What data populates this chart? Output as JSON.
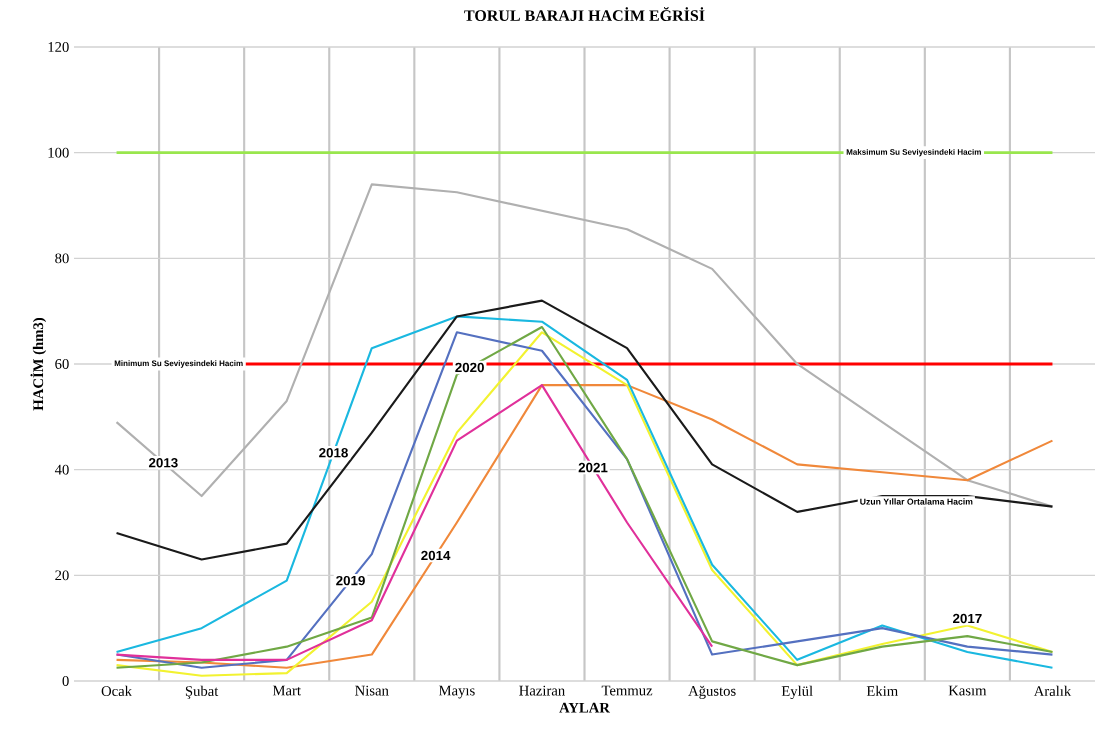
{
  "chart_data": {
    "type": "line",
    "title": "TORUL BARAJI HACİM EĞRİSİ",
    "xlabel": "AYLAR",
    "ylabel": "HACİM (hm3)",
    "categories": [
      "Ocak",
      "Şubat",
      "Mart",
      "Nisan",
      "Mayıs",
      "Haziran",
      "Temmuz",
      "Ağustos",
      "Eylül",
      "Ekim",
      "Kasım",
      "Aralık"
    ],
    "series": [
      {
        "name": "2013",
        "color": "#b0b0b0",
        "values": [
          49,
          35,
          53,
          94,
          92.5,
          89,
          85.5,
          78,
          60,
          49,
          38,
          33
        ]
      },
      {
        "name": "2014",
        "color": "#f0883a",
        "values": [
          4,
          3.5,
          2.5,
          5,
          30,
          56,
          56,
          49.5,
          41,
          39.5,
          38,
          45.5
        ]
      },
      {
        "name": "2017",
        "color": "#f2f230",
        "values": [
          3,
          1,
          1.5,
          15,
          47,
          66,
          56,
          21,
          3,
          7,
          10.5,
          5.5
        ]
      },
      {
        "name": "2018",
        "color": "#1ab8e0",
        "values": [
          5.5,
          10,
          19,
          63,
          69,
          68,
          57,
          22,
          4,
          10.5,
          5.5,
          2.5
        ]
      },
      {
        "name": "2019",
        "color": "#5470c0",
        "values": [
          5,
          2.5,
          4,
          24,
          66,
          62.5,
          42,
          5,
          7.5,
          10,
          6.5,
          5
        ]
      },
      {
        "name": "2020",
        "color": "#70a845",
        "values": [
          2.5,
          3.5,
          6.5,
          12,
          58,
          67,
          42,
          7.5,
          3,
          6.5,
          8.5,
          5.5
        ]
      },
      {
        "name": "2021",
        "color": "#e0309a",
        "values": [
          5,
          4,
          4,
          11.5,
          45.5,
          56,
          30,
          6.5,
          null,
          null,
          null,
          null
        ]
      },
      {
        "name": "Uzun Yıllar Ortalama Hacim",
        "color": "#1a1a1a",
        "values": [
          28,
          23,
          26,
          47,
          69,
          72,
          63,
          41,
          32,
          35,
          35,
          33
        ]
      }
    ],
    "ref_lines": [
      {
        "axis": "y",
        "value": 100,
        "label": "Maksimum Su Seviyesindeki Hacim",
        "color": "#99e64d"
      },
      {
        "axis": "y",
        "value": 60,
        "label": "Minimum Su Seviyesindeki Hacim",
        "color": "#ff0000"
      }
    ],
    "ylim": [
      0,
      120
    ],
    "yticks": [
      0,
      20,
      40,
      60,
      80,
      100,
      120
    ],
    "grid": true,
    "marker": "none",
    "line_style": "solid"
  }
}
